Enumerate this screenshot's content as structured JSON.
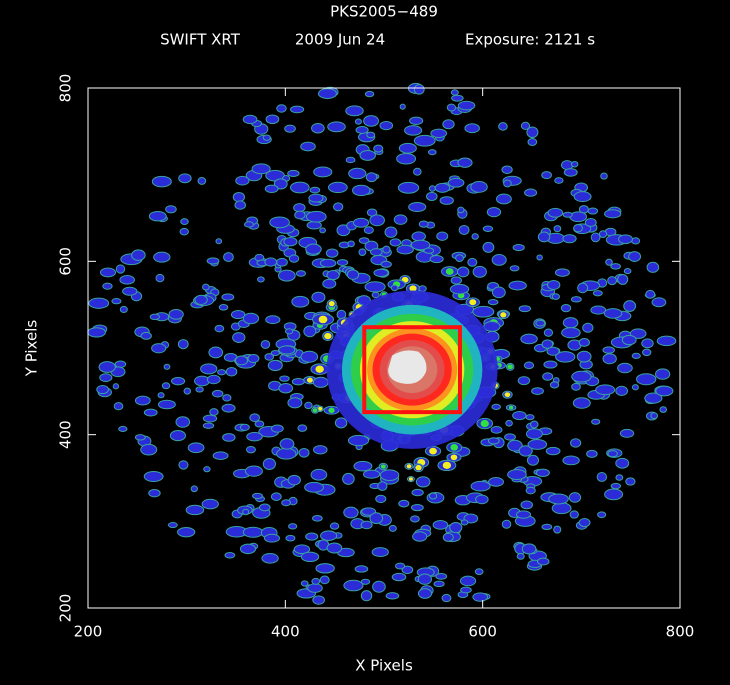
{
  "chart_data": {
    "type": "image",
    "title": "PKS2005−489",
    "instrument": "SWIFT XRT",
    "date": "2009 Jun 24",
    "exposure": "Exposure: 2121 s",
    "x_label": "X Pixels",
    "y_label": "Y Pixels",
    "xlim": [
      200,
      800
    ],
    "ylim": [
      200,
      800
    ],
    "xticks": [
      200,
      400,
      600,
      800
    ],
    "yticks": [
      200,
      400,
      600,
      800
    ],
    "source_region": {
      "x": [
        480,
        577
      ],
      "y": [
        426,
        524
      ],
      "color": "#ff1010"
    }
  }
}
